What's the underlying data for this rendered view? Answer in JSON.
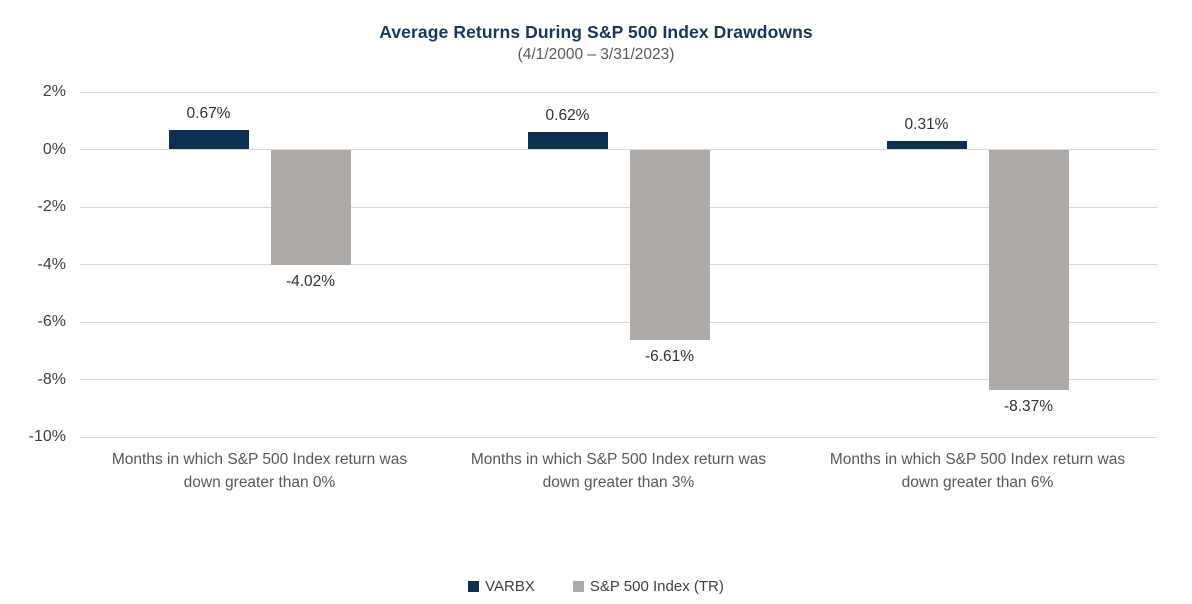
{
  "chart": {
    "title": "Average Returns During S&P 500 Index Drawdowns",
    "subtitle": "(4/1/2000 – 3/31/2023)"
  },
  "chart_data": {
    "type": "bar",
    "title": "Average Returns During S&P 500 Index Drawdowns",
    "subtitle": "(4/1/2000 – 3/31/2023)",
    "categories": [
      {
        "label": "Months in which S&P 500 Index return was down greater than 0%",
        "lines": [
          "Months in which S&P 500 Index return was",
          "down greater than 0%"
        ]
      },
      {
        "label": "Months in which S&P 500 Index return was down greater than 3%",
        "lines": [
          "Months in which S&P 500 Index return was",
          "down greater than 3%"
        ]
      },
      {
        "label": "Months in which S&P 500 Index return was down greater than 6%",
        "lines": [
          "Months in which S&P 500 Index return was",
          "down greater than 6%"
        ]
      }
    ],
    "series": [
      {
        "name": "VARBX",
        "color": "#0e3050",
        "values": [
          0.67,
          0.62,
          0.31
        ],
        "labels": [
          "0.67%",
          "0.62%",
          "0.31%"
        ]
      },
      {
        "name": "S&P 500 Index (TR)",
        "color": "#aeaaa8",
        "values": [
          -4.02,
          -6.61,
          -8.37
        ],
        "labels": [
          "-4.02%",
          "-6.61%",
          "-8.37%"
        ]
      }
    ],
    "ylim": [
      -10,
      2
    ],
    "yticks": [
      {
        "label": "2%",
        "value": 2
      },
      {
        "label": "0%",
        "value": 0
      },
      {
        "label": "-2%",
        "value": -2
      },
      {
        "label": "-4%",
        "value": -4
      },
      {
        "label": "-6%",
        "value": -6
      },
      {
        "label": "-8%",
        "value": -8
      },
      {
        "label": "-10%",
        "value": -10
      }
    ],
    "grid": true,
    "legend_position": "bottom"
  },
  "colors": {
    "title": "#17375e",
    "subtitle": "#595959",
    "varbx_bar": "#0e3050",
    "sp500_bar": "#aeaaa8",
    "gridline": "#d9d9d9",
    "tick_text": "#404040",
    "category_text": "#595959"
  }
}
